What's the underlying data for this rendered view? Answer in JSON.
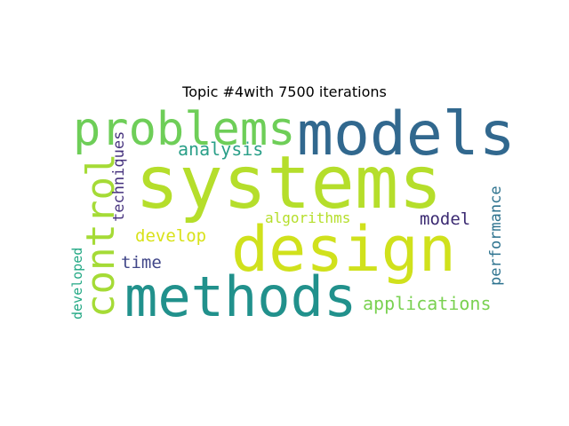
{
  "title": "Topic #4with 7500 iterations",
  "words": {
    "systems": {
      "text": "systems",
      "color": "#b5de2b"
    },
    "models": {
      "text": "models",
      "color": "#31688e"
    },
    "design": {
      "text": "design",
      "color": "#d0e11c"
    },
    "methods": {
      "text": "methods",
      "color": "#21918c"
    },
    "problems": {
      "text": "problems",
      "color": "#6ece58"
    },
    "control": {
      "text": "control",
      "color": "#a5db36"
    },
    "analysis": {
      "text": "analysis",
      "color": "#2a9f88"
    },
    "techniques": {
      "text": "techniques",
      "color": "#46327e"
    },
    "performance": {
      "text": "performance",
      "color": "#2c728e"
    },
    "algorithms": {
      "text": "algorithms",
      "color": "#b5de2b"
    },
    "model": {
      "text": "model",
      "color": "#3b2a72"
    },
    "develop": {
      "text": "develop",
      "color": "#d8e219"
    },
    "time": {
      "text": "time",
      "color": "#404688"
    },
    "applications": {
      "text": "applications",
      "color": "#7ad151"
    },
    "developed": {
      "text": "developed",
      "color": "#22a884"
    }
  }
}
